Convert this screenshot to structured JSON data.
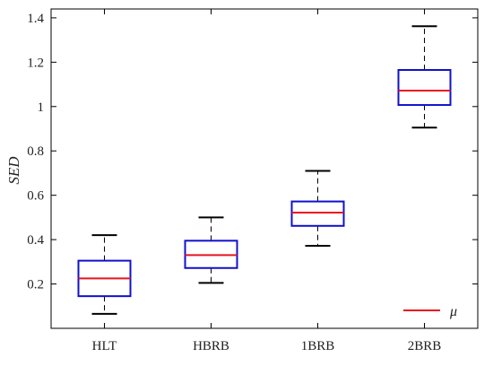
{
  "chart_data": {
    "type": "box",
    "ylabel": "SED",
    "xlabel": "",
    "ylim": [
      0.0,
      1.44
    ],
    "yticks": [
      0.2,
      0.4,
      0.6,
      0.8,
      1,
      1.2,
      1.4
    ],
    "ytick_labels": [
      "0.2",
      "0.4",
      "0.6",
      "0.8",
      "1",
      "1.2",
      "1.4"
    ],
    "categories": [
      "HLT",
      "HBRB",
      "1BRB",
      "2BRB"
    ],
    "boxes": [
      {
        "label": "HLT",
        "whisker_low": 0.065,
        "q1": 0.145,
        "median": 0.225,
        "q3": 0.305,
        "whisker_high": 0.42
      },
      {
        "label": "HBRB",
        "whisker_low": 0.205,
        "q1": 0.272,
        "median": 0.33,
        "q3": 0.395,
        "whisker_high": 0.5
      },
      {
        "label": "1BRB",
        "whisker_low": 0.372,
        "q1": 0.462,
        "median": 0.522,
        "q3": 0.572,
        "whisker_high": 0.71
      },
      {
        "label": "2BRB",
        "whisker_low": 0.905,
        "q1": 1.007,
        "median": 1.072,
        "q3": 1.165,
        "whisker_high": 1.362
      }
    ],
    "legend": {
      "entries": [
        "μ"
      ],
      "position": "bottom-right"
    },
    "grid": false,
    "colors": {
      "box": "#1010cc",
      "median": "#e8141e",
      "whisker": "#000000",
      "axis": "#000000"
    }
  }
}
